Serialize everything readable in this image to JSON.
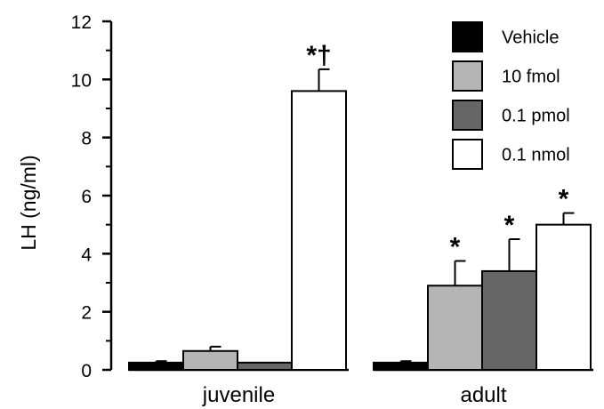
{
  "chart_data": {
    "type": "bar",
    "ylabel": "LH (ng/ml)",
    "ylim": [
      0,
      12
    ],
    "yticks": [
      "0",
      "2",
      "4",
      "6",
      "8",
      "10",
      "12"
    ],
    "categories": [
      "juvenile",
      "adult"
    ],
    "series": [
      {
        "name": "Vehicle",
        "color": "#000000",
        "values": [
          0.25,
          0.25
        ],
        "errors": [
          0.05,
          0.05
        ]
      },
      {
        "name": "10 fmol",
        "color": "#b5b5b5",
        "values": [
          0.65,
          2.9
        ],
        "errors": [
          0.15,
          0.85
        ]
      },
      {
        "name": "0.1 pmol",
        "color": "#666666",
        "values": [
          0.25,
          3.4
        ],
        "errors": [
          0.0,
          1.1
        ]
      },
      {
        "name": "0.1 nmol",
        "color": "#ffffff",
        "values": [
          9.6,
          5.0
        ],
        "errors": [
          0.75,
          0.4
        ]
      }
    ],
    "annotations": [
      {
        "category": "juvenile",
        "series": "0.1 nmol",
        "text": "*†"
      },
      {
        "category": "adult",
        "series": "10 fmol",
        "text": "*"
      },
      {
        "category": "adult",
        "series": "0.1 pmol",
        "text": "*"
      },
      {
        "category": "adult",
        "series": "0.1 nmol",
        "text": "*"
      }
    ],
    "legend_position": "top-right",
    "grid": false
  }
}
